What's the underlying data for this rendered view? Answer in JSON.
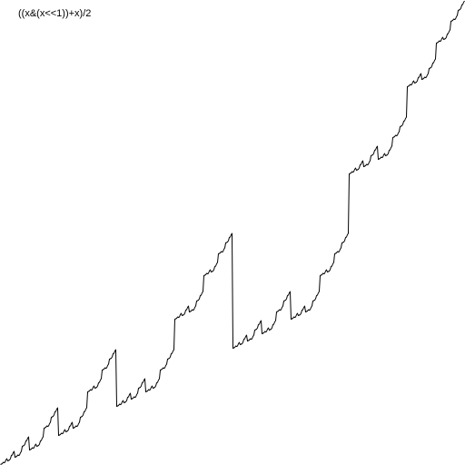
{
  "chart_data": {
    "type": "line",
    "title": "((x&(x<<1))+x)/2",
    "expression": "((x&(x<<1))+x)/2",
    "x_range": [
      0,
      511
    ],
    "y_range": [
      0,
      511
    ],
    "sampling": "one sample per integer x",
    "grid": false,
    "legend": "none",
    "line_color": "#000000",
    "background": "#ffffff"
  }
}
